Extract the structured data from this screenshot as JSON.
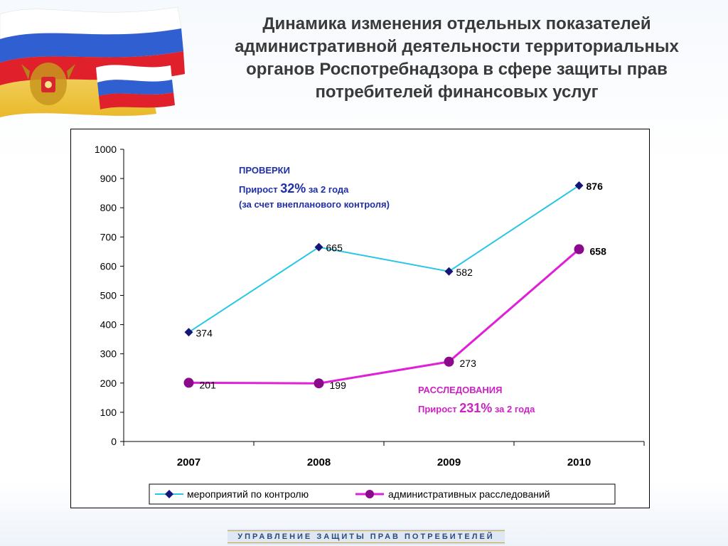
{
  "title": "Динамика изменения отдельных показателей\nадминистративной деятельности территориальных\nорганов Роспотребнадзора в сфере защиты прав\nпотребителей финансовых услуг",
  "footer": "УПРАВЛЕНИЕ ЗАЩИТЫ ПРАВ ПОТРЕБИТЕЛЕЙ",
  "colors": {
    "inspections": "#27c6e6",
    "investigations": "#e020d8",
    "inspections_marker": "#16157a",
    "investigations_marker": "#8b0a8b",
    "annotation_blue": "#1f2fa8",
    "annotation_magenta": "#cc22c4"
  },
  "chart_data": {
    "type": "line",
    "categories": [
      "2007",
      "2008",
      "2009",
      "2010"
    ],
    "ylim": [
      0,
      1000
    ],
    "yticks": [
      0,
      100,
      200,
      300,
      400,
      500,
      600,
      700,
      800,
      900,
      1000
    ],
    "series": [
      {
        "name": "мероприятий по контролю",
        "values": [
          374,
          665,
          582,
          876
        ]
      },
      {
        "name": "административных расследований",
        "values": [
          201,
          199,
          273,
          658
        ]
      }
    ],
    "legend_position": "bottom",
    "annotations": {
      "inspections": {
        "line1": "ПРОВЕРКИ",
        "line2_prefix": "Прирост ",
        "line2_pct": "32%",
        "line2_suffix": " за 2 года",
        "line3": "(за счет внепланового контроля)"
      },
      "investigations": {
        "line1": "РАССЛЕДОВАНИЯ",
        "line2_prefix": "Прирост ",
        "line2_pct": "231%",
        "line2_suffix": " за 2 года"
      }
    }
  }
}
